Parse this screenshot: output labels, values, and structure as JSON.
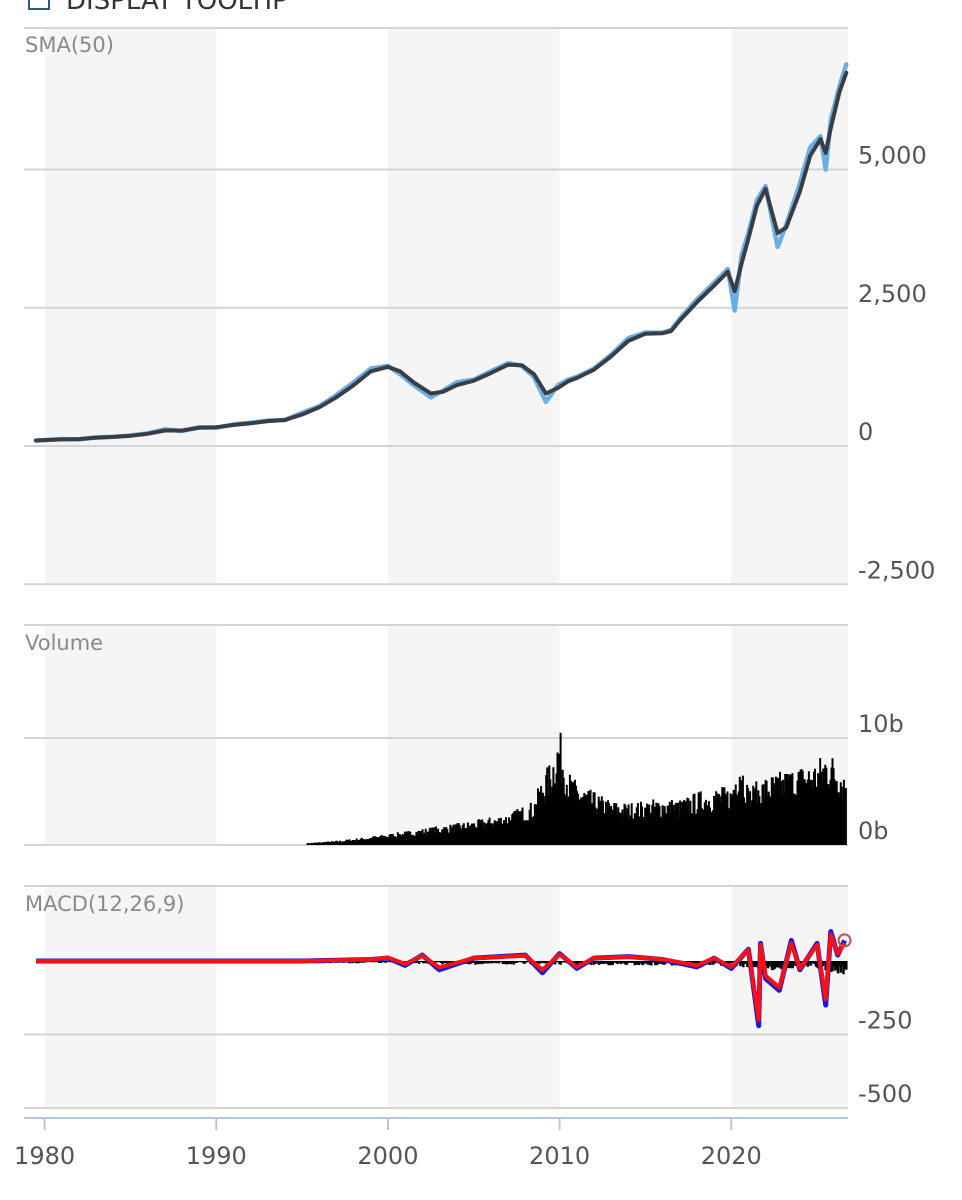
{
  "header": {
    "tooltip_label": "DISPLAY TOOLTIP"
  },
  "chart_data": {
    "type": "line",
    "x_axis": {
      "ticks": [
        "1980",
        "1990",
        "2000",
        "2010",
        "2020"
      ],
      "range": [
        1978.8,
        2026.8
      ]
    },
    "shaded_bands": [
      [
        1980,
        1990
      ],
      [
        2000,
        2010
      ],
      [
        2020,
        2026.8
      ]
    ],
    "panels": [
      {
        "id": "price",
        "title": "SMA(50)",
        "ylim": [
          -2500,
          7500
        ],
        "yticks": [
          {
            "value": 5000,
            "label": "5,000"
          },
          {
            "value": 2500,
            "label": "2,500"
          },
          {
            "value": 0,
            "label": "0"
          },
          {
            "value": -2500,
            "label": "-2,500"
          }
        ],
        "series": [
          {
            "name": "",
            "role": "price",
            "color": "#6aaee6",
            "x": [
              1979.5,
              1981,
              1982,
              1983,
              1984,
              1985,
              1986,
              1987,
              1988,
              1989,
              1990,
              1991,
              1992,
              1993,
              1994,
              1995,
              1996,
              1997,
              1998,
              1999,
              2000,
              2000.7,
              2001.5,
              2002.5,
              2003.2,
              2004,
              2005,
              2006,
              2007,
              2007.8,
              2008.5,
              2009.2,
              2009.9,
              2010.5,
              2011,
              2012,
              2013,
              2014,
              2015,
              2016,
              2016.5,
              2017,
              2018,
              2019,
              2019.8,
              2020.2,
              2020.6,
              2021,
              2021.5,
              2022,
              2022.7,
              2023.2,
              2024,
              2024.6,
              2025.2,
              2025.5,
              2025.8,
              2026.3,
              2026.7
            ],
            "y": [
              100,
              125,
              120,
              160,
              165,
              190,
              230,
              300,
              270,
              340,
              330,
              390,
              420,
              460,
              470,
              600,
              720,
              920,
              1150,
              1400,
              1450,
              1300,
              1100,
              880,
              1000,
              1150,
              1200,
              1350,
              1500,
              1450,
              1250,
              800,
              1100,
              1200,
              1250,
              1400,
              1650,
              1950,
              2050,
              2050,
              2100,
              2300,
              2650,
              2950,
              3200,
              2450,
              3450,
              3850,
              4450,
              4700,
              3600,
              4000,
              4750,
              5400,
              5600,
              5000,
              5900,
              6500,
              6900
            ]
          },
          {
            "name": "",
            "role": "sma",
            "color": "#3a3d44",
            "x": [
              1979.5,
              1981,
              1982,
              1983,
              1984,
              1985,
              1986,
              1987,
              1988,
              1989,
              1990,
              1991,
              1992,
              1993,
              1994,
              1995,
              1996,
              1997,
              1998,
              1999,
              2000,
              2000.7,
              2001.5,
              2002.5,
              2003.2,
              2004,
              2005,
              2006,
              2007,
              2007.8,
              2008.5,
              2009.2,
              2009.9,
              2010.5,
              2011,
              2012,
              2013,
              2014,
              2015,
              2016,
              2016.5,
              2017,
              2018,
              2019,
              2019.8,
              2020.2,
              2020.6,
              2021,
              2021.5,
              2022,
              2022.7,
              2023.2,
              2024,
              2024.6,
              2025.2,
              2025.5,
              2025.8,
              2026.3,
              2026.7
            ],
            "y": [
              100,
              120,
              125,
              150,
              165,
              185,
              220,
              280,
              280,
              330,
              340,
              380,
              410,
              450,
              470,
              570,
              700,
              880,
              1100,
              1350,
              1430,
              1350,
              1150,
              950,
              980,
              1100,
              1180,
              1320,
              1470,
              1460,
              1300,
              950,
              1050,
              1170,
              1230,
              1380,
              1620,
              1900,
              2030,
              2040,
              2080,
              2270,
              2600,
              2900,
              3150,
              2800,
              3300,
              3750,
              4350,
              4650,
              3850,
              3950,
              4600,
              5250,
              5550,
              5300,
              5750,
              6400,
              6750
            ]
          }
        ]
      },
      {
        "id": "volume",
        "title": "Volume",
        "ylim": [
          0,
          20
        ],
        "unit": "b",
        "yticks": [
          {
            "value": 10,
            "label": "10b"
          },
          {
            "value": 0,
            "label": "0b"
          }
        ],
        "series": [
          {
            "name": "",
            "role": "volume",
            "color": "#000000",
            "x": [
              1995.3,
              1997,
              1999,
              2001,
              2003,
              2005,
              2007,
              2008.5,
              2009,
              2009.5,
              2010,
              2010.5,
              2011,
              2012,
              2013,
              2014,
              2015,
              2016,
              2017,
              2018,
              2019,
              2020,
              2020.5,
              2021,
              2022,
              2023,
              2024,
              2025,
              2025.5,
              2026,
              2026.7
            ],
            "y": [
              0.2,
              0.4,
              0.8,
              1.3,
              1.8,
              2.3,
              3.0,
              4.2,
              6.5,
              8.0,
              11.0,
              7.0,
              6.0,
              5.0,
              4.2,
              4.0,
              4.2,
              4.5,
              4.3,
              5.0,
              5.5,
              5.5,
              9.0,
              5.5,
              6.5,
              7.0,
              7.5,
              8.0,
              9.0,
              8.5,
              7.0
            ]
          }
        ]
      },
      {
        "id": "macd",
        "title": "MACD(12,26,9)",
        "ylim": [
          -500,
          250
        ],
        "yticks": [
          {
            "value": -250,
            "label": "-250"
          },
          {
            "value": -500,
            "label": "-500"
          }
        ],
        "series": [
          {
            "name": "",
            "role": "macd",
            "color": "#1a1adf",
            "x": [
              1979.5,
              1985,
              1990,
              1995,
              1999,
              2000,
              2001,
              2002,
              2003,
              2005,
              2008,
              2009,
              2010,
              2011,
              2012,
              2014,
              2016,
              2018,
              2019,
              2020,
              2021,
              2021.6,
              2021.7,
              2022,
              2022.8,
              2023.5,
              2024,
              2025,
              2025.5,
              2025.8,
              2026.2,
              2026.6
            ],
            "y": [
              0,
              0,
              0,
              0,
              5,
              10,
              -15,
              20,
              -30,
              10,
              20,
              -40,
              25,
              -25,
              10,
              15,
              5,
              -20,
              10,
              -25,
              40,
              -220,
              60,
              -60,
              -100,
              70,
              -30,
              60,
              -150,
              100,
              20,
              70
            ]
          },
          {
            "name": "",
            "role": "signal",
            "color": "#ff1010",
            "x": [
              1979.5,
              1985,
              1990,
              1995,
              1999,
              2000,
              2001,
              2002,
              2003,
              2005,
              2008,
              2009,
              2010,
              2011,
              2012,
              2014,
              2016,
              2018,
              2019,
              2020,
              2021,
              2021.6,
              2021.7,
              2022,
              2022.8,
              2023.5,
              2024,
              2025,
              2025.5,
              2025.8,
              2026.2,
              2026.6
            ],
            "y": [
              0,
              0,
              0,
              0,
              5,
              12,
              -10,
              18,
              -22,
              10,
              18,
              -30,
              22,
              -20,
              10,
              14,
              6,
              -15,
              10,
              -20,
              38,
              -200,
              55,
              -50,
              -90,
              60,
              -25,
              55,
              -130,
              90,
              25,
              60
            ]
          },
          {
            "name": "",
            "role": "histogram",
            "color": "#000000",
            "x": [
              1979.5,
              1985,
              1990,
              1995,
              2000,
              2005,
              2010,
              2015,
              2020,
              2021,
              2022,
              2023,
              2024,
              2025,
              2026,
              2026.7
            ],
            "y": [
              0,
              -3,
              -3,
              -5,
              -5,
              -8,
              -8,
              -10,
              -10,
              -15,
              -20,
              -20,
              -15,
              -18,
              -25,
              -30
            ]
          }
        ]
      }
    ]
  }
}
